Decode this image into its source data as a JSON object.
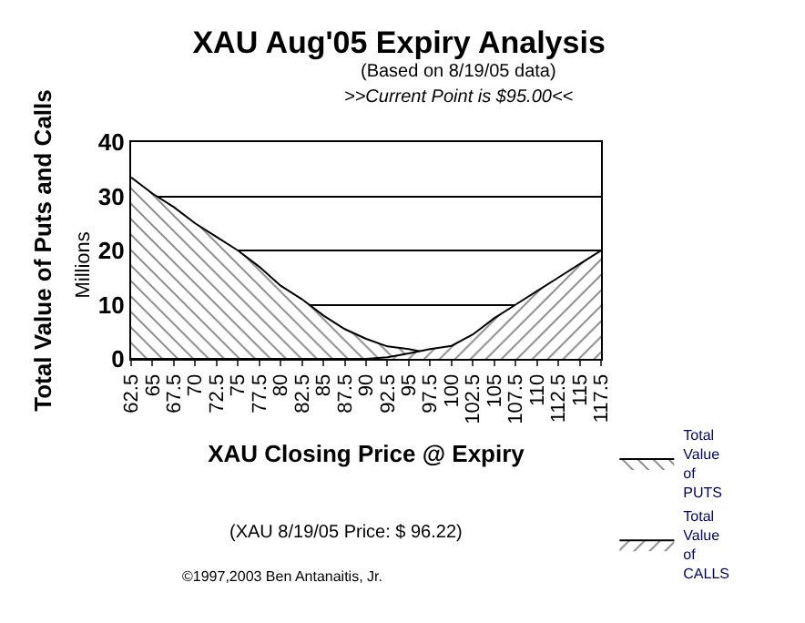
{
  "chart_data": {
    "type": "area",
    "title": "XAU Aug'05 Expiry Analysis",
    "subtitle": "(Based on 8/19/05 data)",
    "xlabel": "XAU Closing Price @ Expiry",
    "ylabel": "Total Value of Puts and Calls",
    "annotations": [
      ">>Current Point is $95.00<<",
      "Millions",
      "(XAU 8/19/05 Price: $ 96.22)",
      "©1997,2003 Ben Antanaitis, Jr."
    ],
    "categories": [
      "62.5",
      "65",
      "67.5",
      "70",
      "72.5",
      "75",
      "77.5",
      "80",
      "82.5",
      "85",
      "87.5",
      "90",
      "92.5",
      "95",
      "97.5",
      "100",
      "102.5",
      "105",
      "107.5",
      "110",
      "112.5",
      "115",
      "117.5"
    ],
    "series": [
      {
        "name": "Total Value of PUTS",
        "color": "#000000",
        "values": [
          33.5,
          30.5,
          28,
          25,
          22.5,
          20,
          17,
          13.5,
          11,
          8,
          5.5,
          3.7,
          2.3,
          1.8,
          1,
          0,
          0,
          0,
          0,
          0,
          0,
          0,
          0
        ]
      },
      {
        "name": "Total Value of CALLS",
        "color": "#000000",
        "values": [
          0,
          0,
          0,
          0,
          0,
          0,
          0,
          0,
          0,
          0,
          0,
          0,
          0.3,
          1,
          1.8,
          2.4,
          4.5,
          7.5,
          10,
          12.5,
          15,
          17.5,
          20
        ]
      }
    ],
    "ylim": [
      0,
      40
    ],
    "yticks": [
      0,
      10,
      20,
      30,
      40
    ],
    "grid": "y",
    "legend": "bottom right"
  }
}
